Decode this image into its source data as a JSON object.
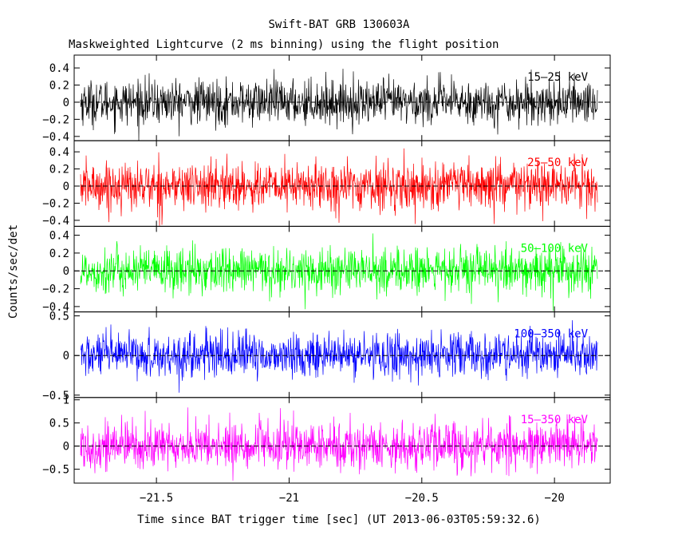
{
  "chart_data": {
    "type": "line",
    "title": "Swift-BAT GRB 130603A",
    "subtitle": "Maskweighted Lightcurve (2 ms binning) using the flight position",
    "xlabel": "Time since BAT trigger time [sec] (UT 2013-06-03T05:59:32.6)",
    "ylabel": "Counts/sec/det",
    "xlim": [
      -21.81,
      -19.79
    ],
    "xticks": [
      -21.5,
      -21,
      -20.5,
      -20
    ],
    "xtick_labels": [
      "−21.5",
      "−21",
      "−20.5",
      "−20"
    ],
    "grid": false,
    "sampling": "2 ms binning, noise around 0 with no burst signal",
    "panels": [
      {
        "band": "15–25 keV",
        "color": "#000000",
        "ylim": [
          -0.45,
          0.55
        ],
        "yticks": [
          0.4,
          0.2,
          0,
          -0.2,
          -0.4
        ],
        "ytick_labels": [
          "0.4",
          "0.2",
          "0",
          "−0.2",
          "−0.4"
        ],
        "noise_sigma": 0.13
      },
      {
        "band": "25–50 keV",
        "color": "#ff0000",
        "ylim": [
          -0.47,
          0.53
        ],
        "yticks": [
          0.4,
          0.2,
          0,
          -0.2,
          -0.4
        ],
        "ytick_labels": [
          "0.4",
          "0.2",
          "0",
          "−0.2",
          "−0.4"
        ],
        "noise_sigma": 0.14
      },
      {
        "band": "50–100 keV",
        "color": "#00ff00",
        "ylim": [
          -0.46,
          0.5
        ],
        "yticks": [
          0.4,
          0.2,
          0,
          -0.2,
          -0.4
        ],
        "ytick_labels": [
          "0.4",
          "0.2",
          "0",
          "−0.2",
          "−0.4"
        ],
        "noise_sigma": 0.13
      },
      {
        "band": "100–350 keV",
        "color": "#0000ff",
        "ylim": [
          -0.53,
          0.55
        ],
        "yticks": [
          0.5,
          0,
          -0.5
        ],
        "ytick_labels": [
          "0.5",
          "0",
          "−0.5"
        ],
        "noise_sigma": 0.14
      },
      {
        "band": "15–350 keV",
        "color": "#ff00ff",
        "ylim": [
          -0.8,
          1.05
        ],
        "yticks": [
          1,
          0.5,
          0,
          -0.5
        ],
        "ytick_labels": [
          "1",
          "0.5",
          "0",
          "−0.5"
        ],
        "noise_sigma": 0.26
      }
    ]
  }
}
